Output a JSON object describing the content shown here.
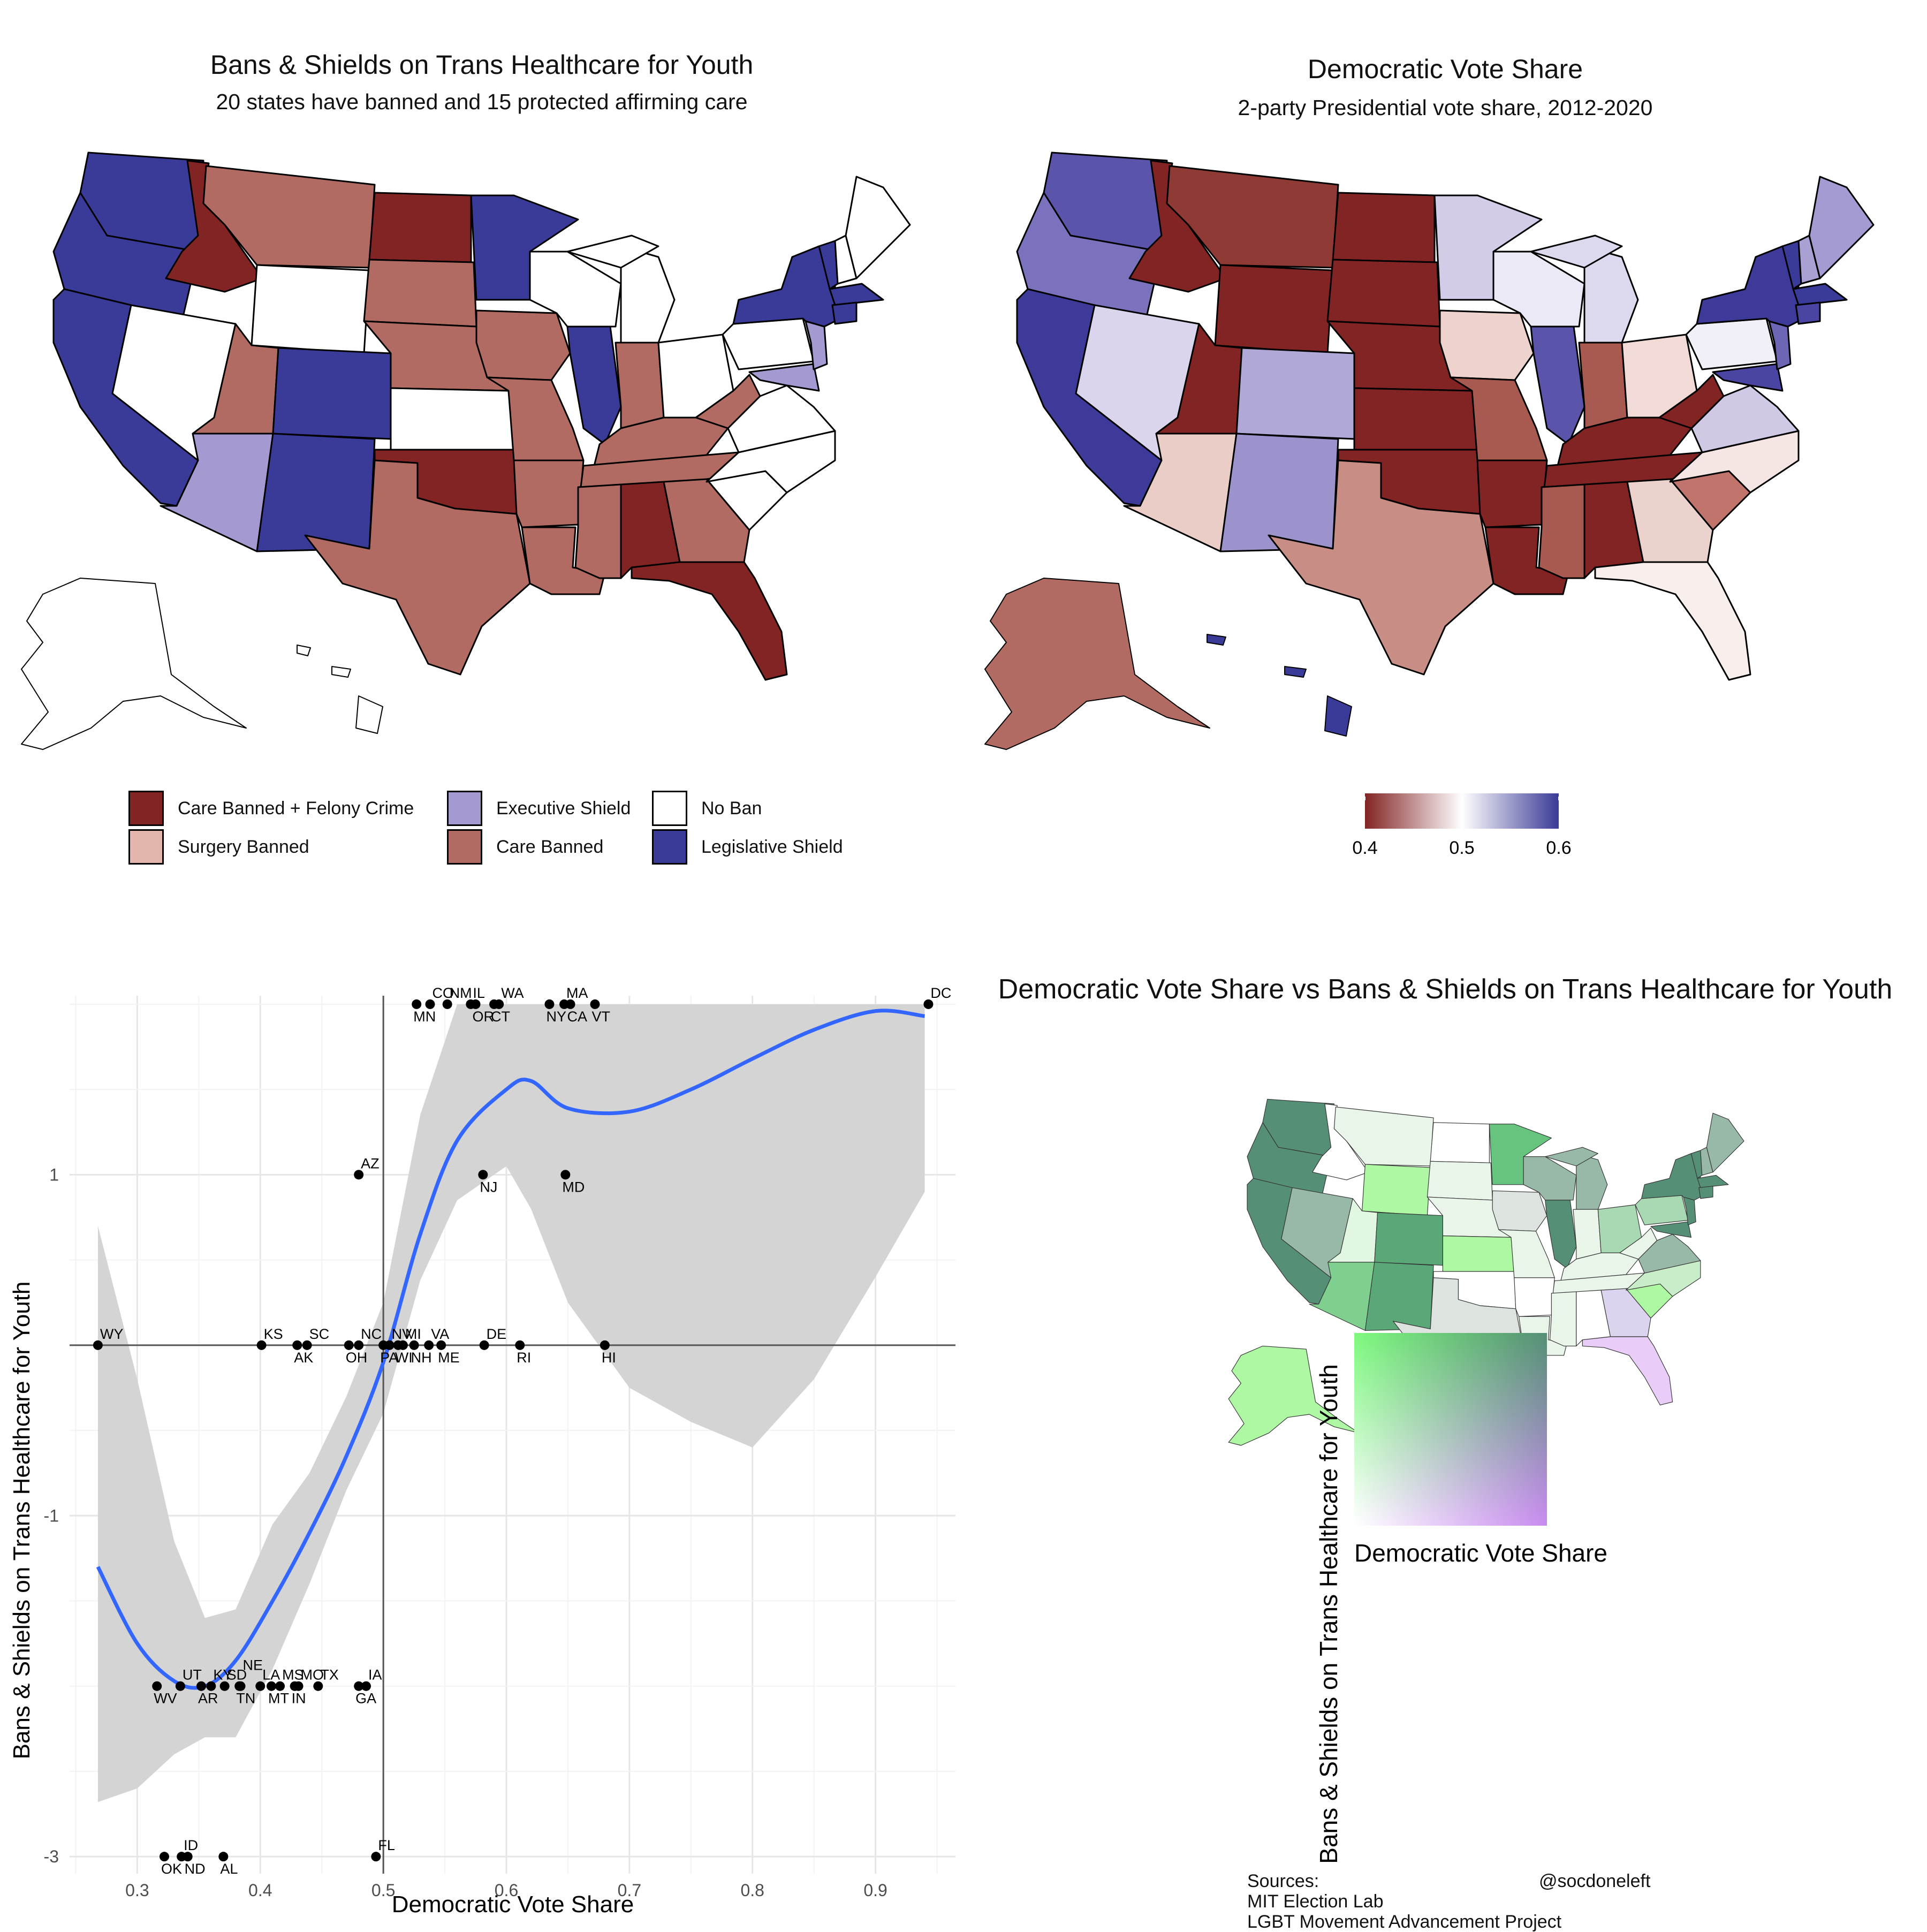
{
  "map1": {
    "title": "Bans & Shields on Trans Healthcare for Youth",
    "subtitle": "20 states have banned and 15 protected affirming care",
    "legend": [
      {
        "label": "Care Banned + Felony Crime",
        "color": "#832424"
      },
      {
        "label": "Care Banned",
        "color": "#b26b62"
      },
      {
        "label": "Surgery Banned",
        "color": "#e4b5ad"
      },
      {
        "label": "No Ban",
        "color": "#ffffff"
      },
      {
        "label": "Executive Shield",
        "color": "#a49ad1"
      },
      {
        "label": "Legislative Shield",
        "color": "#3a3a98"
      }
    ]
  },
  "map2": {
    "title": "Democratic Vote Share",
    "subtitle": "2-party Presidential vote share, 2012-2020",
    "scale_ticks": [
      "0.4",
      "0.5",
      "0.6"
    ],
    "scale_colors": [
      "#832424",
      "#ffffff",
      "#3a3a98"
    ]
  },
  "bivariate": {
    "title": "Democratic Vote Share vs Bans & Shields on Trans Healthcare for Youth",
    "xlabel": "Democratic Vote Share",
    "ylabel": "Bans & Shields on Trans Healthcare for Youth",
    "grid_colors": [
      "#ffffff",
      "#7dfa7d",
      "#c98cf0",
      "#558f75"
    ]
  },
  "sources": {
    "heading": "Sources:",
    "lines": [
      "MIT Election Lab",
      "LGBT Movement Advancement Project"
    ],
    "handle": "@socdoneleft"
  },
  "chart_data": {
    "type": "scatter",
    "title": "",
    "xlabel": "Democratic Vote Share",
    "ylabel": "Bans & Shields on Trans Healthcare for Youth",
    "xlim": [
      0.245,
      0.965
    ],
    "ylim": [
      -3.1,
      2.05
    ],
    "xticks": [
      0.3,
      0.4,
      0.5,
      0.6,
      0.7,
      0.8,
      0.9
    ],
    "xtick_labels": [
      "0.3",
      "0.4",
      "0.5",
      "0.6",
      "0.7",
      "0.8",
      "0.9"
    ],
    "yticks": [
      1,
      -1,
      -3
    ],
    "ytick_labels": [
      "1",
      "-1",
      "-3"
    ],
    "reference_lines": {
      "x": 0.5,
      "y": 0
    },
    "points": [
      {
        "label": "WY",
        "x": 0.268,
        "y": 0,
        "pos": "above"
      },
      {
        "label": "KS",
        "x": 0.401,
        "y": 0,
        "pos": "above"
      },
      {
        "label": "AK",
        "x": 0.43,
        "y": 0,
        "pos": "below"
      },
      {
        "label": "SC",
        "x": 0.438,
        "y": 0,
        "pos": "above"
      },
      {
        "label": "NC",
        "x": 0.48,
        "y": 0,
        "pos": "above"
      },
      {
        "label": "OH",
        "x": 0.472,
        "y": 0,
        "pos": "below"
      },
      {
        "label": "NV",
        "x": 0.505,
        "y": 0,
        "pos": "above"
      },
      {
        "label": "PA",
        "x": 0.5,
        "y": 0,
        "pos": "below"
      },
      {
        "label": "MI",
        "x": 0.516,
        "y": 0,
        "pos": "above"
      },
      {
        "label": "WI",
        "x": 0.512,
        "y": 0,
        "pos": "below"
      },
      {
        "label": "VA",
        "x": 0.537,
        "y": 0,
        "pos": "above"
      },
      {
        "label": "NH",
        "x": 0.525,
        "y": 0,
        "pos": "below"
      },
      {
        "label": "ME",
        "x": 0.547,
        "y": 0,
        "pos": "below"
      },
      {
        "label": "DE",
        "x": 0.582,
        "y": 0,
        "pos": "above"
      },
      {
        "label": "RI",
        "x": 0.611,
        "y": 0,
        "pos": "below"
      },
      {
        "label": "HI",
        "x": 0.68,
        "y": 0,
        "pos": "below"
      },
      {
        "label": "AZ",
        "x": 0.48,
        "y": 1,
        "pos": "above"
      },
      {
        "label": "NJ",
        "x": 0.581,
        "y": 1,
        "pos": "below"
      },
      {
        "label": "MD",
        "x": 0.648,
        "y": 1,
        "pos": "below"
      },
      {
        "label": "CO",
        "x": 0.538,
        "y": 2,
        "pos": "above"
      },
      {
        "label": "NM",
        "x": 0.552,
        "y": 2,
        "pos": "above"
      },
      {
        "label": "MN",
        "x": 0.527,
        "y": 2,
        "pos": "below"
      },
      {
        "label": "IL",
        "x": 0.571,
        "y": 2,
        "pos": "above"
      },
      {
        "label": "OR",
        "x": 0.575,
        "y": 2,
        "pos": "below"
      },
      {
        "label": "WA",
        "x": 0.594,
        "y": 2,
        "pos": "above"
      },
      {
        "label": "CT",
        "x": 0.59,
        "y": 2,
        "pos": "below"
      },
      {
        "label": "MA",
        "x": 0.647,
        "y": 2,
        "pos": "above"
      },
      {
        "label": "NY",
        "x": 0.635,
        "y": 2,
        "pos": "below"
      },
      {
        "label": "CA",
        "x": 0.652,
        "y": 2,
        "pos": "below"
      },
      {
        "label": "VT",
        "x": 0.672,
        "y": 2,
        "pos": "below"
      },
      {
        "label": "DC",
        "x": 0.943,
        "y": 2,
        "pos": "above"
      },
      {
        "label": "UT",
        "x": 0.335,
        "y": -2,
        "pos": "above"
      },
      {
        "label": "WV",
        "x": 0.316,
        "y": -2,
        "pos": "below"
      },
      {
        "label": "KY",
        "x": 0.36,
        "y": -2,
        "pos": "above"
      },
      {
        "label": "AR",
        "x": 0.352,
        "y": -2,
        "pos": "below"
      },
      {
        "label": "SD",
        "x": 0.371,
        "y": -2,
        "pos": "above"
      },
      {
        "label": "NE",
        "x": 0.384,
        "y": -2,
        "pos": "above2"
      },
      {
        "label": "TN",
        "x": 0.383,
        "y": -2,
        "pos": "below"
      },
      {
        "label": "LA",
        "x": 0.4,
        "y": -2,
        "pos": "above"
      },
      {
        "label": "MS",
        "x": 0.416,
        "y": -2,
        "pos": "above"
      },
      {
        "label": "MT",
        "x": 0.409,
        "y": -2,
        "pos": "below"
      },
      {
        "label": "MO",
        "x": 0.431,
        "y": -2,
        "pos": "above"
      },
      {
        "label": "IN",
        "x": 0.428,
        "y": -2,
        "pos": "below"
      },
      {
        "label": "TX",
        "x": 0.447,
        "y": -2,
        "pos": "above"
      },
      {
        "label": "IA",
        "x": 0.486,
        "y": -2,
        "pos": "above"
      },
      {
        "label": "GA",
        "x": 0.48,
        "y": -2,
        "pos": "below"
      },
      {
        "label": "ID",
        "x": 0.336,
        "y": -3,
        "pos": "above"
      },
      {
        "label": "OK",
        "x": 0.322,
        "y": -3,
        "pos": "below"
      },
      {
        "label": "ND",
        "x": 0.341,
        "y": -3,
        "pos": "below"
      },
      {
        "label": "AL",
        "x": 0.37,
        "y": -3,
        "pos": "below"
      },
      {
        "label": "FL",
        "x": 0.494,
        "y": -3,
        "pos": "above"
      }
    ],
    "smooth": {
      "x": [
        0.268,
        0.3,
        0.33,
        0.355,
        0.38,
        0.41,
        0.44,
        0.47,
        0.5,
        0.53,
        0.56,
        0.6,
        0.62,
        0.65,
        0.7,
        0.75,
        0.8,
        0.85,
        0.9,
        0.94
      ],
      "y": [
        -1.3,
        -1.75,
        -1.97,
        -2.0,
        -1.85,
        -1.5,
        -1.1,
        -0.65,
        -0.1,
        0.65,
        1.2,
        1.5,
        1.55,
        1.39,
        1.37,
        1.5,
        1.68,
        1.85,
        1.96,
        1.93
      ],
      "lower": [
        -2.68,
        -2.6,
        -2.4,
        -2.3,
        -2.3,
        -1.9,
        -1.4,
        -0.85,
        -0.4,
        0.38,
        0.85,
        1.05,
        0.8,
        0.25,
        -0.25,
        -0.45,
        -0.6,
        -0.2,
        0.4,
        0.9
      ],
      "upper": [
        0.7,
        -0.2,
        -1.15,
        -1.6,
        -1.55,
        -1.05,
        -0.75,
        -0.3,
        0.25,
        1.35,
        2.0,
        2.0,
        2.0,
        2.0,
        2.0,
        2.0,
        2.0,
        2.0,
        2.0,
        2.0
      ]
    }
  }
}
